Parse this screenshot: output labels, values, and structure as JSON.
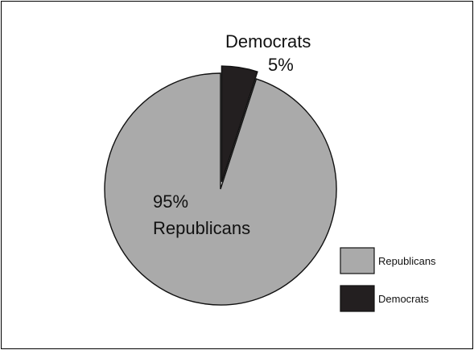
{
  "chart_data": {
    "type": "pie",
    "title": "",
    "categories": [
      "Republicans",
      "Democrats"
    ],
    "values": [
      95,
      5
    ],
    "value_labels": [
      "95%",
      "5%"
    ],
    "colors": [
      "#aaaaaa",
      "#231f20"
    ],
    "exploded": [
      "Democrats"
    ],
    "legend": {
      "placement": "bottom-right",
      "entries": [
        "Republicans",
        "Democrats"
      ]
    }
  }
}
